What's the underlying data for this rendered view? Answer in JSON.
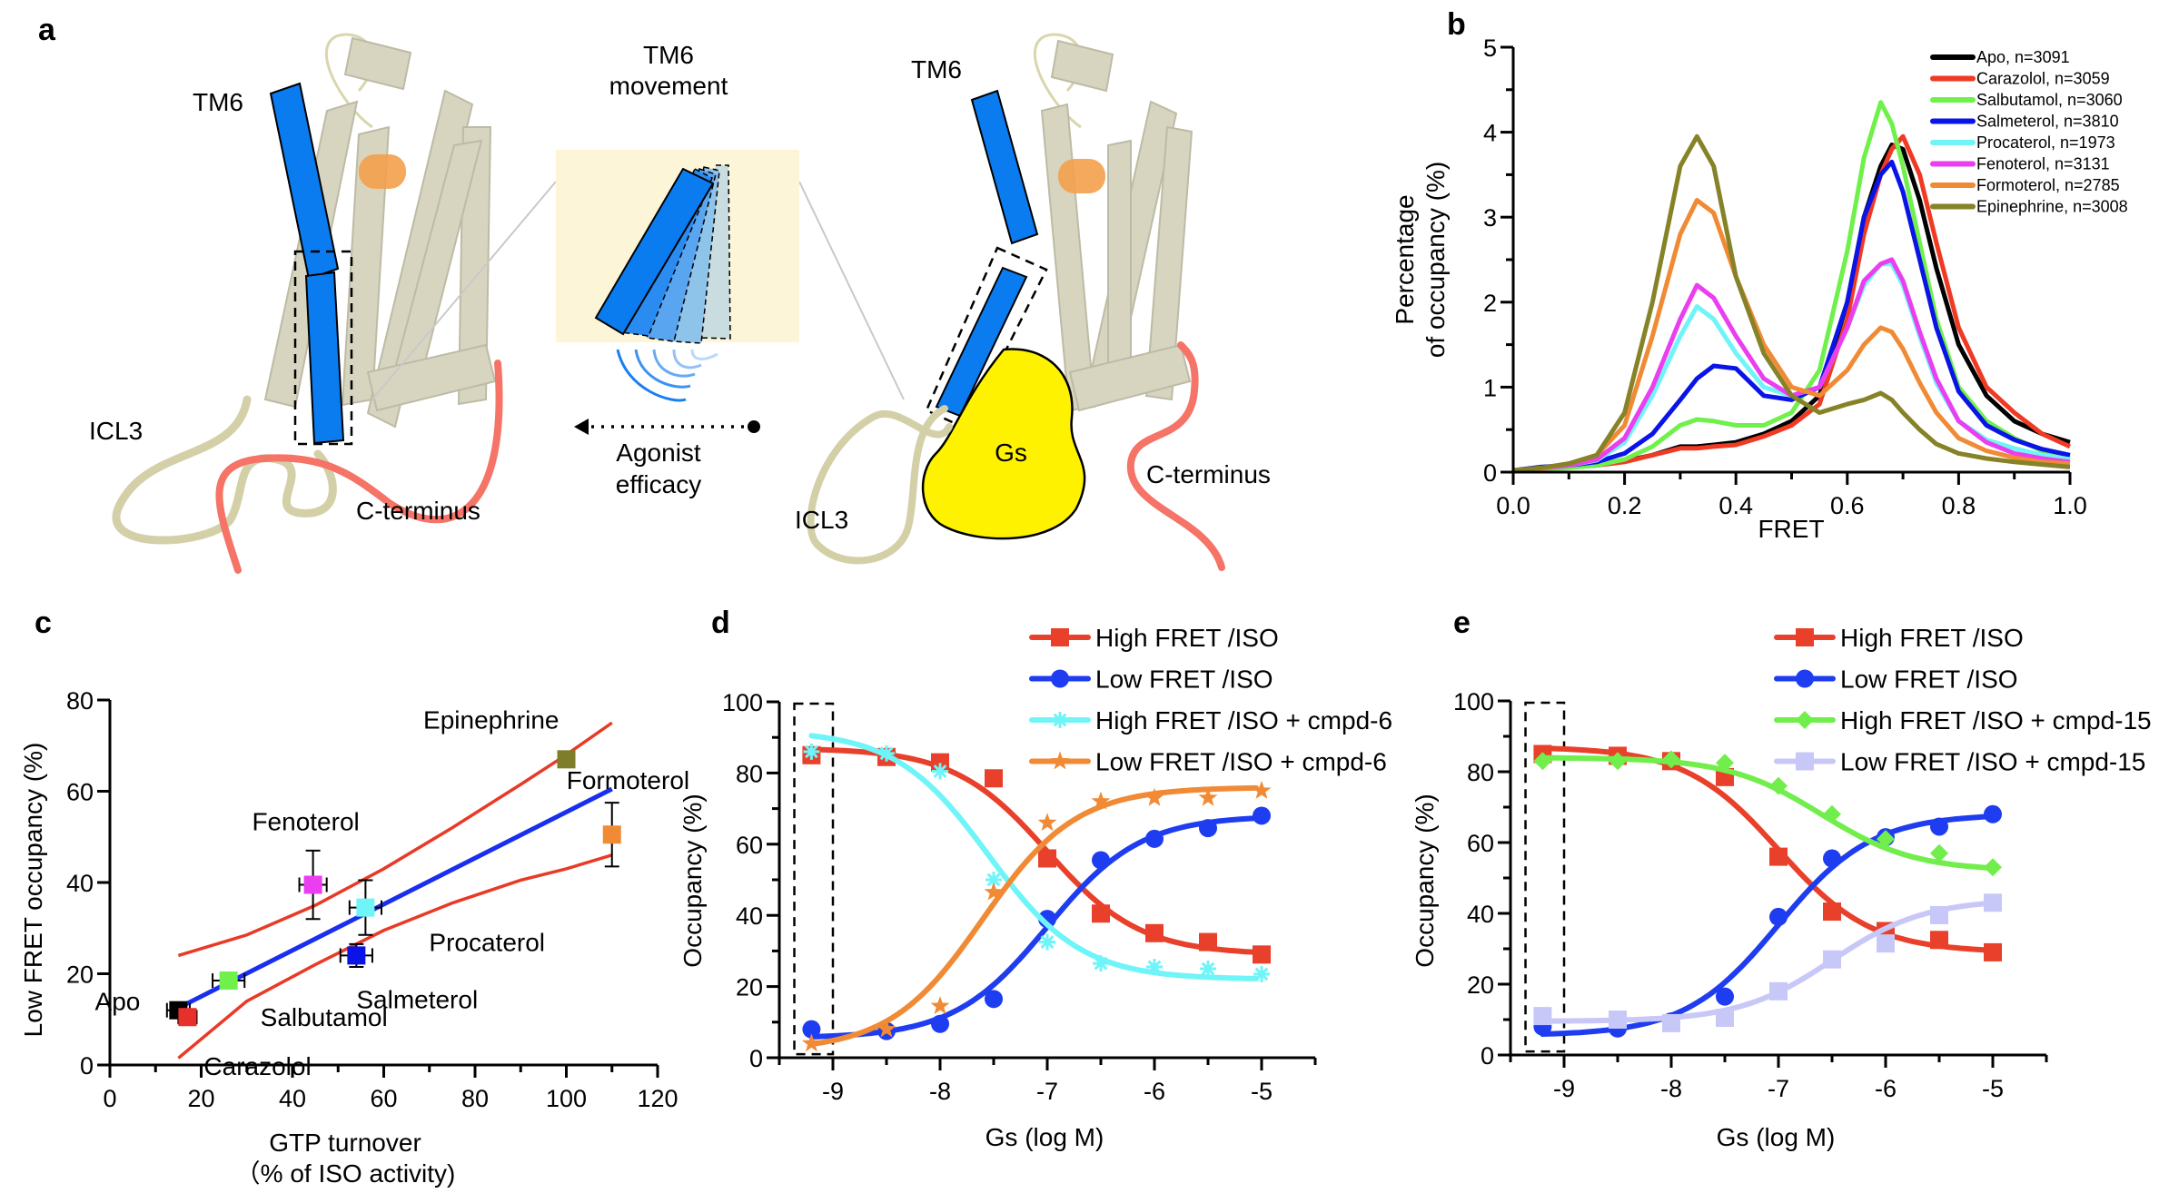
{
  "panel_a": {
    "letter": "a",
    "left_tm6": "TM6",
    "left_icl3": "ICL3",
    "left_cterm": "C-terminus",
    "mid_title_1": "TM6",
    "mid_title_2": "movement",
    "mid_arrow_1": "Agonist",
    "mid_arrow_2": "efficacy",
    "right_tm6": "TM6",
    "right_icl3": "ICL3",
    "right_cterm": "C-terminus",
    "gs_label": "Gs",
    "colors": {
      "helix": "#d7d5c0",
      "tm6": "#0a7cf0",
      "ligand": "#f4a04a",
      "cterm": "#f57367",
      "icl3": "#d3d0a8",
      "gs": "#fff200",
      "movement_bg": "#fdf5d8"
    }
  },
  "chart_data": [
    {
      "id": "b",
      "type": "line",
      "letter": "b",
      "title": "",
      "xlabel": "FRET",
      "ylabel_1": "Percentage",
      "ylabel_2": "of occupancy (%)",
      "xlim": [
        0,
        1.0
      ],
      "ylim": [
        0,
        5
      ],
      "xticks": [
        "0.0",
        "0.2",
        "0.4",
        "0.6",
        "0.8",
        "1.0"
      ],
      "yticks": [
        "0",
        "1",
        "2",
        "3",
        "4",
        "5"
      ],
      "legend_position": "top-right",
      "x": [
        0.0,
        0.05,
        0.1,
        0.15,
        0.2,
        0.25,
        0.3,
        0.33,
        0.36,
        0.4,
        0.45,
        0.5,
        0.55,
        0.6,
        0.63,
        0.66,
        0.68,
        0.7,
        0.73,
        0.76,
        0.8,
        0.85,
        0.9,
        0.95,
        1.0
      ],
      "series": [
        {
          "name": "Apo, n=3091",
          "color": "#000000",
          "values": [
            0.02,
            0.03,
            0.06,
            0.08,
            0.13,
            0.2,
            0.3,
            0.3,
            0.32,
            0.35,
            0.45,
            0.6,
            0.9,
            2.0,
            3.0,
            3.6,
            3.85,
            3.8,
            3.2,
            2.4,
            1.5,
            0.9,
            0.6,
            0.45,
            0.35
          ]
        },
        {
          "name": "Carazolol, n=3059",
          "color": "#f03a23",
          "values": [
            0.02,
            0.03,
            0.06,
            0.08,
            0.12,
            0.2,
            0.28,
            0.28,
            0.3,
            0.32,
            0.42,
            0.55,
            0.8,
            1.8,
            2.8,
            3.5,
            3.8,
            3.95,
            3.5,
            2.7,
            1.7,
            1.0,
            0.7,
            0.45,
            0.3
          ]
        },
        {
          "name": "Salbutamol, n=3060",
          "color": "#6ff04a",
          "values": [
            0.02,
            0.03,
            0.05,
            0.08,
            0.15,
            0.3,
            0.55,
            0.62,
            0.6,
            0.55,
            0.55,
            0.7,
            1.2,
            2.6,
            3.7,
            4.35,
            4.1,
            3.6,
            2.7,
            1.8,
            1.0,
            0.6,
            0.4,
            0.25,
            0.18
          ]
        },
        {
          "name": "Salmeterol, n=3810",
          "color": "#0a14e6",
          "values": [
            0.02,
            0.06,
            0.08,
            0.12,
            0.22,
            0.45,
            0.85,
            1.1,
            1.25,
            1.22,
            0.9,
            0.85,
            1.0,
            2.0,
            3.0,
            3.5,
            3.65,
            3.3,
            2.5,
            1.7,
            0.95,
            0.55,
            0.38,
            0.27,
            0.2
          ]
        },
        {
          "name": "Procaterol, n=1973",
          "color": "#6ff4f8",
          "values": [
            0.02,
            0.04,
            0.08,
            0.14,
            0.35,
            0.9,
            1.6,
            1.95,
            1.8,
            1.4,
            1.0,
            0.9,
            1.0,
            1.7,
            2.2,
            2.45,
            2.45,
            2.2,
            1.6,
            1.05,
            0.6,
            0.38,
            0.28,
            0.2,
            0.15
          ]
        },
        {
          "name": "Fenoterol, n=3131",
          "color": "#ea3ef0",
          "values": [
            0.02,
            0.04,
            0.08,
            0.15,
            0.4,
            1.0,
            1.8,
            2.2,
            2.05,
            1.6,
            1.1,
            0.9,
            1.0,
            1.7,
            2.25,
            2.45,
            2.5,
            2.25,
            1.65,
            1.1,
            0.6,
            0.35,
            0.22,
            0.16,
            0.12
          ]
        },
        {
          "name": "Formoterol, n=2785",
          "color": "#f08a35",
          "values": [
            0.02,
            0.04,
            0.1,
            0.2,
            0.55,
            1.6,
            2.8,
            3.2,
            3.05,
            2.3,
            1.5,
            1.0,
            0.9,
            1.2,
            1.5,
            1.7,
            1.65,
            1.45,
            1.05,
            0.7,
            0.4,
            0.25,
            0.17,
            0.12,
            0.1
          ]
        },
        {
          "name": "Epinephrine, n=3008",
          "color": "#858227",
          "values": [
            0.02,
            0.05,
            0.1,
            0.2,
            0.7,
            2.0,
            3.6,
            3.95,
            3.6,
            2.3,
            1.4,
            0.9,
            0.7,
            0.8,
            0.85,
            0.93,
            0.85,
            0.7,
            0.5,
            0.33,
            0.22,
            0.16,
            0.12,
            0.09,
            0.06
          ]
        }
      ]
    },
    {
      "id": "c",
      "type": "scatter",
      "letter": "c",
      "xlabel_1": "GTP turnover",
      "xlabel_2": "（% of ISO activity)",
      "ylabel": "Low FRET occupancy (%)",
      "xlim": [
        0,
        120
      ],
      "ylim": [
        0,
        80
      ],
      "xticks": [
        "0",
        "20",
        "40",
        "60",
        "80",
        "100",
        "120"
      ],
      "yticks": [
        "0",
        "20",
        "40",
        "60",
        "80"
      ],
      "points": [
        {
          "name": "Apo",
          "x": 15,
          "y": 12,
          "xerr": 2.5,
          "yerr": 1,
          "color": "#000000"
        },
        {
          "name": "Carazolol",
          "x": 17,
          "y": 10.5,
          "xerr": 2,
          "yerr": 1.5,
          "color": "#e8302a"
        },
        {
          "name": "Salbutamol",
          "x": 26,
          "y": 18.5,
          "xerr": 3.5,
          "yerr": 0.8,
          "color": "#6ff04a"
        },
        {
          "name": "Fenoterol",
          "x": 44.5,
          "y": 39.5,
          "xerr": 3,
          "yerr": 7.5,
          "color": "#ea3ef0"
        },
        {
          "name": "Salmeterol",
          "x": 54,
          "y": 24,
          "xerr": 3.5,
          "yerr": 2.5,
          "color": "#0a14e6"
        },
        {
          "name": "Procaterol",
          "x": 56,
          "y": 34.5,
          "xerr": 3.5,
          "yerr": 6,
          "color": "#6ff4f8"
        },
        {
          "name": "Epinephrine",
          "x": 100,
          "y": 67,
          "xerr": 0,
          "yerr": 1.5,
          "color": "#7d7d2a"
        },
        {
          "name": "Formoterol",
          "x": 110,
          "y": 50.5,
          "xerr": 0,
          "yerr": 7,
          "color": "#f08a35"
        }
      ],
      "fit_line": {
        "color": "#1a2ef0",
        "x": [
          15,
          110
        ],
        "y": [
          12.5,
          60.5
        ]
      },
      "ci_upper": {
        "color": "#e83a26",
        "x": [
          15,
          30,
          45,
          60,
          75,
          90,
          100,
          110
        ],
        "y": [
          24,
          28.5,
          35,
          43,
          52,
          61.5,
          68,
          75
        ]
      },
      "ci_lower": {
        "color": "#e83a26",
        "x": [
          15,
          30,
          45,
          60,
          75,
          90,
          100,
          110
        ],
        "y": [
          1.5,
          14,
          22,
          29.5,
          35.5,
          40.5,
          43,
          46
        ]
      }
    },
    {
      "id": "d",
      "type": "line",
      "letter": "d",
      "xlabel": "Gs (log M)",
      "ylabel": "Occupancy (%)",
      "xlim": [
        -9.5,
        -4.5
      ],
      "ylim": [
        0,
        100
      ],
      "xticks": [
        "-9",
        "-8",
        "-7",
        "-6",
        "-5"
      ],
      "yticks": [
        "0",
        "20",
        "40",
        "60",
        "80",
        "100"
      ],
      "legend_position": "top-right",
      "x": [
        -9.2,
        -8.5,
        -8.0,
        -7.5,
        -7.0,
        -6.5,
        -6.0,
        -5.5,
        -5.0
      ],
      "series": [
        {
          "name": "High FRET /ISO",
          "color": "#e8402a",
          "marker": "square",
          "values": [
            85,
            84.5,
            83,
            78.5,
            56,
            40.5,
            35,
            32.5,
            29
          ],
          "fit": {
            "top": 87,
            "bottom": 29,
            "logec50": -7.0,
            "hill": -1
          }
        },
        {
          "name": "Low FRET /ISO",
          "color": "#1e3cf0",
          "marker": "circle",
          "values": [
            8,
            7.5,
            9.5,
            16.5,
            39,
            55.5,
            61.5,
            64.5,
            68
          ],
          "fit": {
            "top": 68,
            "bottom": 5.5,
            "logec50": -7.0,
            "hill": 1
          }
        },
        {
          "name": "High FRET /ISO + cmpd-6",
          "color": "#6ff4f8",
          "marker": "asterisk",
          "values": [
            86,
            85.5,
            80.5,
            50,
            32.5,
            26.5,
            25.5,
            25,
            23.5
          ],
          "fit": {
            "top": 92,
            "bottom": 22,
            "logec50": -7.55,
            "hill": -1
          }
        },
        {
          "name": "Low FRET /ISO + cmpd-6",
          "color": "#f08a35",
          "marker": "star",
          "values": [
            4,
            8,
            14.5,
            46.5,
            66,
            72,
            73,
            73,
            75
          ],
          "fit": {
            "top": 76,
            "bottom": 2,
            "logec50": -7.6,
            "hill": 1
          }
        }
      ]
    },
    {
      "id": "e",
      "type": "line",
      "letter": "e",
      "xlabel": "Gs (log M)",
      "ylabel": "Occupancy (%)",
      "xlim": [
        -9.5,
        -4.5
      ],
      "ylim": [
        0,
        100
      ],
      "xticks": [
        "-9",
        "-8",
        "-7",
        "-6",
        "-5"
      ],
      "yticks": [
        "0",
        "20",
        "40",
        "60",
        "80",
        "100"
      ],
      "legend_position": "top-right",
      "x": [
        -9.2,
        -8.5,
        -8.0,
        -7.5,
        -7.0,
        -6.5,
        -6.0,
        -5.5,
        -5.0
      ],
      "series": [
        {
          "name": "High FRET /ISO",
          "color": "#e8402a",
          "marker": "square",
          "values": [
            85,
            84.5,
            83,
            78.5,
            56,
            40.5,
            35,
            32.5,
            29
          ],
          "fit": {
            "top": 87,
            "bottom": 29,
            "logec50": -7.0,
            "hill": -1
          }
        },
        {
          "name": "Low FRET /ISO",
          "color": "#1e3cf0",
          "marker": "circle",
          "values": [
            8,
            7.5,
            9.5,
            16.5,
            39,
            55.5,
            61.5,
            64.5,
            68
          ],
          "fit": {
            "top": 68,
            "bottom": 5.5,
            "logec50": -7.0,
            "hill": 1
          }
        },
        {
          "name": "High FRET /ISO + cmpd-15",
          "color": "#72ee4c",
          "marker": "diamond",
          "values": [
            83,
            83,
            83.5,
            82.5,
            76,
            68,
            61,
            57,
            53
          ],
          "fit": {
            "top": 84,
            "bottom": 52,
            "logec50": -6.6,
            "hill": -1
          }
        },
        {
          "name": "Low FRET /ISO + cmpd-15",
          "color": "#c8c8f8",
          "marker": "square",
          "values": [
            11,
            10,
            9,
            10.5,
            18,
            27,
            31.5,
            39.5,
            43
          ],
          "fit": {
            "top": 44,
            "bottom": 9.5,
            "logec50": -6.5,
            "hill": 1
          }
        }
      ]
    }
  ]
}
